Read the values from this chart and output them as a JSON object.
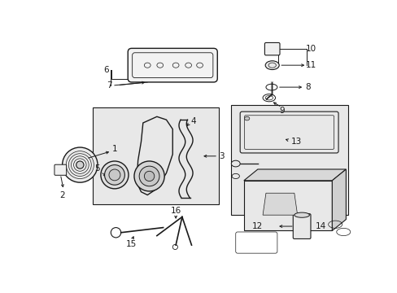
{
  "bg_color": "#ffffff",
  "line_color": "#1a1a1a",
  "box_fill": "#e8e8e8",
  "part_fill": "#ffffff",
  "fig_w": 4.89,
  "fig_h": 3.6,
  "dpi": 100
}
